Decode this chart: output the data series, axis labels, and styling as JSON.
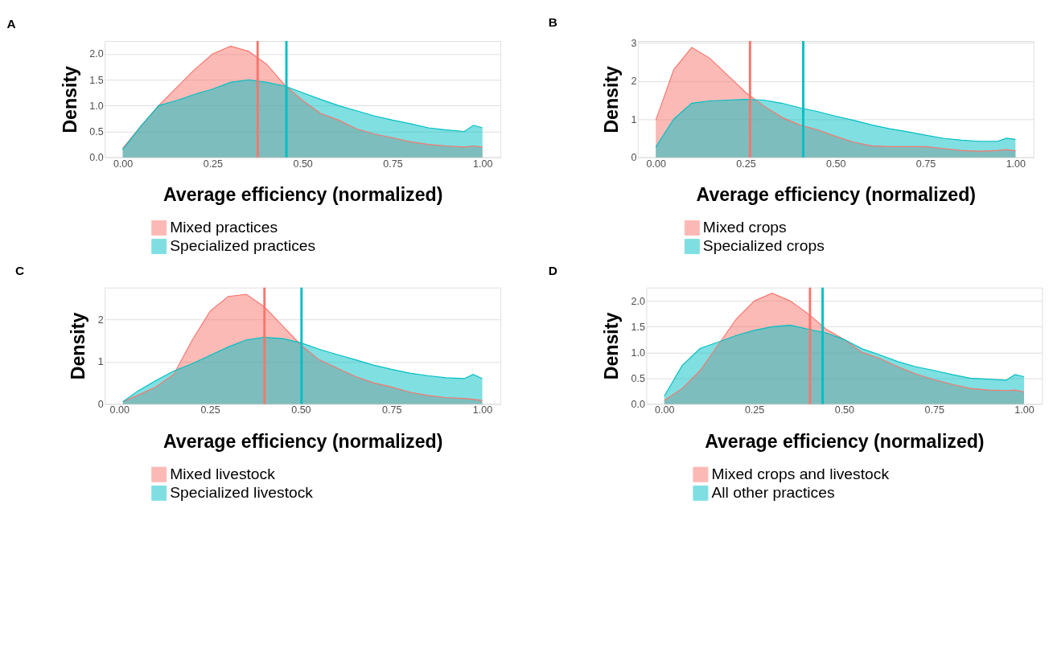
{
  "chart_data": [
    {
      "type": "area",
      "title": "A",
      "xlabel": "Average efficiency (normalized)",
      "ylabel": "Density",
      "legend": "bottom",
      "grid": "y",
      "x": [
        0,
        0.05,
        0.1,
        0.15,
        0.2,
        0.25,
        0.3,
        0.35,
        0.4,
        0.45,
        0.5,
        0.55,
        0.6,
        0.65,
        0.7,
        0.75,
        0.8,
        0.85,
        0.9,
        0.95,
        0.975,
        1.0
      ],
      "series": [
        {
          "name": "Mixed practices",
          "color": "#f8766d",
          "values": [
            0.17,
            0.6,
            1.0,
            1.35,
            1.7,
            2.0,
            2.15,
            2.05,
            1.8,
            1.4,
            1.1,
            0.85,
            0.72,
            0.55,
            0.45,
            0.38,
            0.3,
            0.25,
            0.22,
            0.2,
            0.22,
            0.2
          ]
        },
        {
          "name": "Specialized practices",
          "color": "#00bfc4",
          "values": [
            0.15,
            0.6,
            1.0,
            1.1,
            1.22,
            1.32,
            1.45,
            1.5,
            1.45,
            1.38,
            1.25,
            1.12,
            1.0,
            0.9,
            0.8,
            0.72,
            0.65,
            0.57,
            0.53,
            0.5,
            0.62,
            0.57
          ]
        }
      ],
      "ref_lines": [
        {
          "axis": "x",
          "value": 0.375,
          "color": "#f8766d"
        },
        {
          "axis": "x",
          "value": 0.455,
          "color": "#00bfc4"
        }
      ],
      "xlim": [
        -0.05,
        1.05
      ],
      "ylim": [
        0,
        2.25
      ],
      "xticks": [
        {
          "value": 0,
          "label": "0.00"
        },
        {
          "value": 0.25,
          "label": "0.25"
        },
        {
          "value": 0.5,
          "label": "0.50"
        },
        {
          "value": 0.75,
          "label": "0.75"
        },
        {
          "value": 1,
          "label": "1.00"
        }
      ],
      "yticks": [
        {
          "value": 0,
          "label": "0.0"
        },
        {
          "value": 0.5,
          "label": "0.5"
        },
        {
          "value": 1,
          "label": "1.0"
        },
        {
          "value": 1.5,
          "label": "1.5"
        },
        {
          "value": 2,
          "label": "2.0"
        }
      ]
    },
    {
      "type": "area",
      "title": "B",
      "xlabel": "Average efficiency (normalized)",
      "ylabel": "Density",
      "legend": "bottom",
      "grid": "y",
      "x": [
        0,
        0.05,
        0.1,
        0.15,
        0.2,
        0.25,
        0.3,
        0.35,
        0.4,
        0.45,
        0.5,
        0.55,
        0.6,
        0.65,
        0.7,
        0.75,
        0.8,
        0.85,
        0.9,
        0.95,
        0.975,
        1.0
      ],
      "series": [
        {
          "name": "Mixed crops",
          "color": "#f8766d",
          "values": [
            0.97,
            2.3,
            2.88,
            2.6,
            2.15,
            1.7,
            1.35,
            1.05,
            0.85,
            0.72,
            0.55,
            0.4,
            0.3,
            0.28,
            0.28,
            0.28,
            0.23,
            0.18,
            0.16,
            0.18,
            0.2,
            0.17
          ]
        },
        {
          "name": "Specialized crops",
          "color": "#00bfc4",
          "values": [
            0.27,
            1.0,
            1.42,
            1.48,
            1.5,
            1.52,
            1.5,
            1.42,
            1.3,
            1.2,
            1.08,
            0.97,
            0.85,
            0.75,
            0.67,
            0.58,
            0.5,
            0.45,
            0.42,
            0.42,
            0.5,
            0.47
          ]
        }
      ],
      "ref_lines": [
        {
          "axis": "x",
          "value": 0.262,
          "color": "#f8766d"
        },
        {
          "axis": "x",
          "value": 0.41,
          "color": "#00bfc4"
        }
      ],
      "xlim": [
        -0.05,
        1.05
      ],
      "ylim": [
        0,
        3.05
      ],
      "xticks": [
        {
          "value": 0,
          "label": "0.00"
        },
        {
          "value": 0.25,
          "label": "0.25"
        },
        {
          "value": 0.5,
          "label": "0.50"
        },
        {
          "value": 0.75,
          "label": "0.75"
        },
        {
          "value": 1,
          "label": "1.00"
        }
      ],
      "yticks": [
        0,
        1,
        2,
        3
      ]
    },
    {
      "type": "area",
      "title": "C",
      "xlabel": "Average efficiency (normalized)",
      "ylabel": "Density",
      "legend": "bottom",
      "grid": "y",
      "x": [
        0.01,
        0.05,
        0.1,
        0.15,
        0.2,
        0.25,
        0.3,
        0.35,
        0.4,
        0.45,
        0.5,
        0.55,
        0.6,
        0.65,
        0.7,
        0.75,
        0.8,
        0.85,
        0.9,
        0.95,
        0.975,
        1.0
      ],
      "series": [
        {
          "name": "Mixed livestock",
          "color": "#f8766d",
          "values": [
            0.05,
            0.2,
            0.4,
            0.7,
            1.5,
            2.2,
            2.55,
            2.6,
            2.3,
            1.85,
            1.4,
            1.05,
            0.85,
            0.65,
            0.5,
            0.4,
            0.28,
            0.2,
            0.15,
            0.13,
            0.11,
            0.08
          ]
        },
        {
          "name": "Specialized livestock",
          "color": "#00bfc4",
          "values": [
            0.05,
            0.3,
            0.55,
            0.78,
            0.95,
            1.15,
            1.35,
            1.52,
            1.58,
            1.55,
            1.45,
            1.3,
            1.17,
            1.05,
            0.92,
            0.82,
            0.73,
            0.67,
            0.62,
            0.6,
            0.7,
            0.6
          ]
        }
      ],
      "ref_lines": [
        {
          "axis": "x",
          "value": 0.4,
          "color": "#f8766d"
        },
        {
          "axis": "x",
          "value": 0.502,
          "color": "#00bfc4"
        }
      ],
      "xlim": [
        -0.04,
        1.05
      ],
      "ylim": [
        0,
        2.76
      ],
      "xticks": [
        {
          "value": 0,
          "label": "0.00"
        },
        {
          "value": 0.25,
          "label": "0.25"
        },
        {
          "value": 0.5,
          "label": "0.50"
        },
        {
          "value": 0.75,
          "label": "0.75"
        },
        {
          "value": 1,
          "label": "1.00"
        }
      ],
      "yticks": [
        0,
        1,
        2
      ]
    },
    {
      "type": "area",
      "title": "D",
      "xlabel": "Average efficiency (normalized)",
      "ylabel": "Density",
      "legend": "bottom",
      "grid": "y",
      "x": [
        0,
        0.05,
        0.1,
        0.15,
        0.2,
        0.25,
        0.3,
        0.35,
        0.4,
        0.45,
        0.5,
        0.55,
        0.6,
        0.65,
        0.7,
        0.75,
        0.8,
        0.85,
        0.9,
        0.95,
        0.975,
        1.0
      ],
      "series": [
        {
          "name": "Mixed crops and livestock",
          "color": "#f8766d",
          "values": [
            0.07,
            0.3,
            0.65,
            1.15,
            1.65,
            2.0,
            2.15,
            2.0,
            1.75,
            1.45,
            1.25,
            1.0,
            0.88,
            0.72,
            0.58,
            0.47,
            0.38,
            0.3,
            0.27,
            0.26,
            0.27,
            0.23
          ]
        },
        {
          "name": "All other practices",
          "color": "#00bfc4",
          "values": [
            0.15,
            0.75,
            1.08,
            1.2,
            1.33,
            1.43,
            1.5,
            1.53,
            1.45,
            1.38,
            1.25,
            1.07,
            0.95,
            0.82,
            0.72,
            0.65,
            0.57,
            0.5,
            0.48,
            0.46,
            0.57,
            0.53
          ]
        }
      ],
      "ref_lines": [
        {
          "axis": "x",
          "value": 0.405,
          "color": "#f8766d"
        },
        {
          "axis": "x",
          "value": 0.44,
          "color": "#00bfc4"
        }
      ],
      "xlim": [
        -0.05,
        1.05
      ],
      "ylim": [
        0,
        2.26
      ],
      "xticks": [
        {
          "value": 0,
          "label": "0.00"
        },
        {
          "value": 0.25,
          "label": "0.25"
        },
        {
          "value": 0.5,
          "label": "0.50"
        },
        {
          "value": 0.75,
          "label": "0.75"
        },
        {
          "value": 1,
          "label": "1.00"
        }
      ],
      "yticks": [
        {
          "value": 0,
          "label": "0.0"
        },
        {
          "value": 0.5,
          "label": "0.5"
        },
        {
          "value": 1,
          "label": "1.0"
        },
        {
          "value": 1.5,
          "label": "1.5"
        },
        {
          "value": 2,
          "label": "2.0"
        }
      ]
    }
  ]
}
